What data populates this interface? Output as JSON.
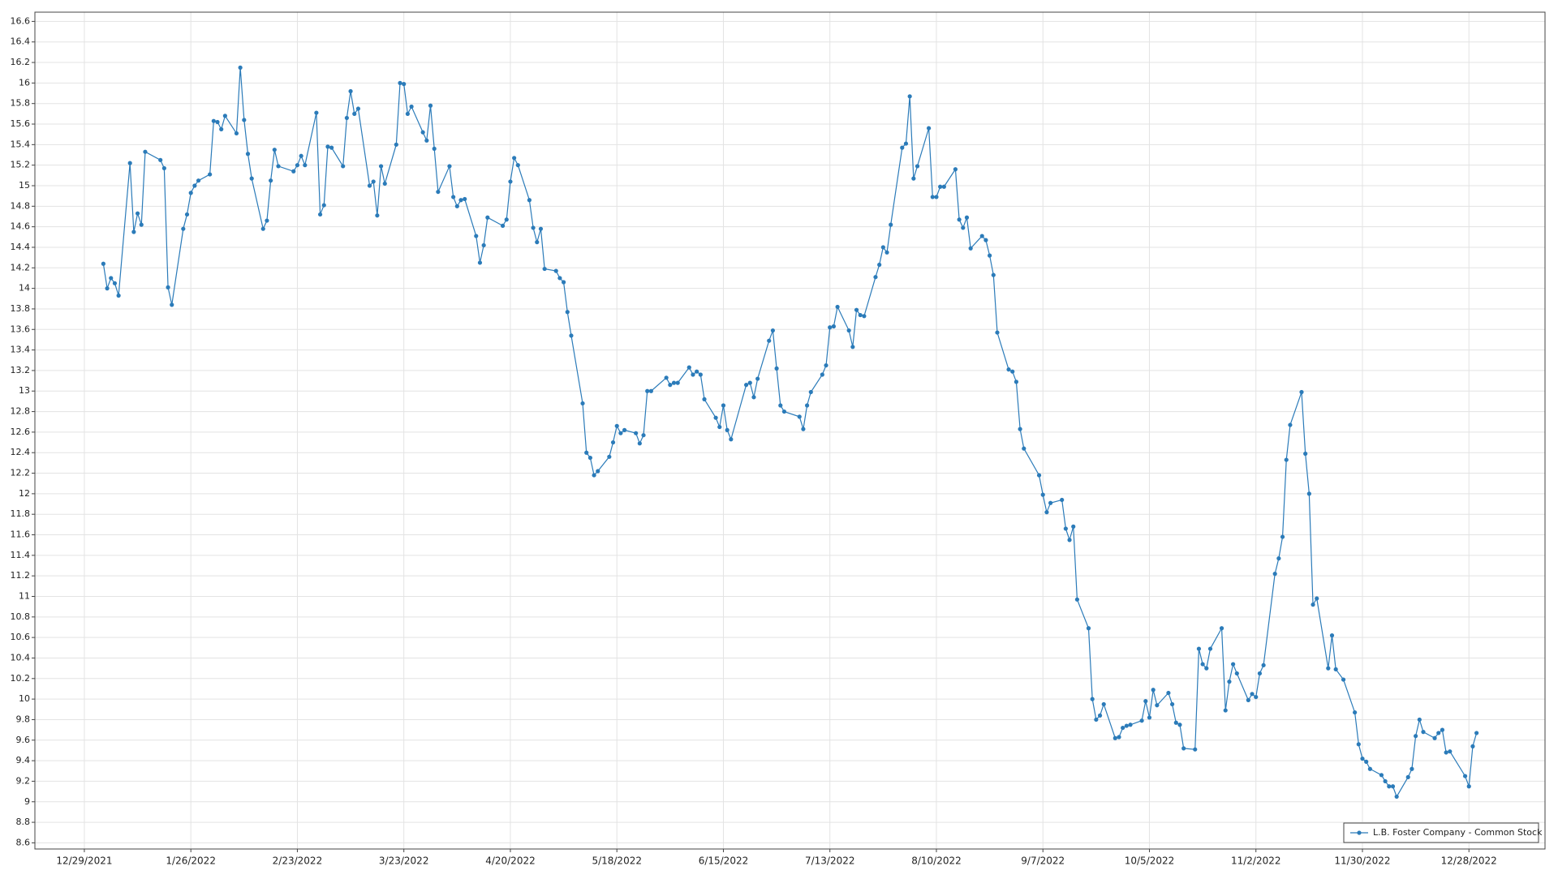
{
  "chart_data": {
    "type": "line",
    "x": [
      "1/3/2022",
      "1/4/2022",
      "1/5/2022",
      "1/6/2022",
      "1/7/2022",
      "1/10/2022",
      "1/11/2022",
      "1/12/2022",
      "1/13/2022",
      "1/14/2022",
      "1/18/2022",
      "1/19/2022",
      "1/20/2022",
      "1/21/2022",
      "1/24/2022",
      "1/25/2022",
      "1/26/2022",
      "1/27/2022",
      "1/28/2022",
      "1/31/2022",
      "2/1/2022",
      "2/2/2022",
      "2/3/2022",
      "2/4/2022",
      "2/7/2022",
      "2/8/2022",
      "2/9/2022",
      "2/10/2022",
      "2/11/2022",
      "2/14/2022",
      "2/15/2022",
      "2/16/2022",
      "2/17/2022",
      "2/18/2022",
      "2/22/2022",
      "2/23/2022",
      "2/24/2022",
      "2/25/2022",
      "2/28/2022",
      "3/1/2022",
      "3/2/2022",
      "3/3/2022",
      "3/4/2022",
      "3/7/2022",
      "3/8/2022",
      "3/9/2022",
      "3/10/2022",
      "3/11/2022",
      "3/14/2022",
      "3/15/2022",
      "3/16/2022",
      "3/17/2022",
      "3/18/2022",
      "3/21/2022",
      "3/22/2022",
      "3/23/2022",
      "3/24/2022",
      "3/25/2022",
      "3/28/2022",
      "3/29/2022",
      "3/30/2022",
      "3/31/2022",
      "4/1/2022",
      "4/4/2022",
      "4/5/2022",
      "4/6/2022",
      "4/7/2022",
      "4/8/2022",
      "4/11/2022",
      "4/12/2022",
      "4/13/2022",
      "4/14/2022",
      "4/18/2022",
      "4/19/2022",
      "4/20/2022",
      "4/21/2022",
      "4/22/2022",
      "4/25/2022",
      "4/26/2022",
      "4/27/2022",
      "4/28/2022",
      "4/29/2022",
      "5/2/2022",
      "5/3/2022",
      "5/4/2022",
      "5/5/2022",
      "5/6/2022",
      "5/9/2022",
      "5/10/2022",
      "5/11/2022",
      "5/12/2022",
      "5/13/2022",
      "5/16/2022",
      "5/17/2022",
      "5/18/2022",
      "5/19/2022",
      "5/20/2022",
      "5/23/2022",
      "5/24/2022",
      "5/25/2022",
      "5/26/2022",
      "5/27/2022",
      "5/31/2022",
      "6/1/2022",
      "6/2/2022",
      "6/3/2022",
      "6/6/2022",
      "6/7/2022",
      "6/8/2022",
      "6/9/2022",
      "6/10/2022",
      "6/13/2022",
      "6/14/2022",
      "6/15/2022",
      "6/16/2022",
      "6/17/2022",
      "6/21/2022",
      "6/22/2022",
      "6/23/2022",
      "6/24/2022",
      "6/27/2022",
      "6/28/2022",
      "6/29/2022",
      "6/30/2022",
      "7/1/2022",
      "7/5/2022",
      "7/6/2022",
      "7/7/2022",
      "7/8/2022",
      "7/11/2022",
      "7/12/2022",
      "7/13/2022",
      "7/14/2022",
      "7/15/2022",
      "7/18/2022",
      "7/19/2022",
      "7/20/2022",
      "7/21/2022",
      "7/22/2022",
      "7/25/2022",
      "7/26/2022",
      "7/27/2022",
      "7/28/2022",
      "7/29/2022",
      "8/1/2022",
      "8/2/2022",
      "8/3/2022",
      "8/4/2022",
      "8/5/2022",
      "8/8/2022",
      "8/9/2022",
      "8/10/2022",
      "8/11/2022",
      "8/12/2022",
      "8/15/2022",
      "8/16/2022",
      "8/17/2022",
      "8/18/2022",
      "8/19/2022",
      "8/22/2022",
      "8/23/2022",
      "8/24/2022",
      "8/25/2022",
      "8/26/2022",
      "8/29/2022",
      "8/30/2022",
      "8/31/2022",
      "9/1/2022",
      "9/2/2022",
      "9/6/2022",
      "9/7/2022",
      "9/8/2022",
      "9/9/2022",
      "9/12/2022",
      "9/13/2022",
      "9/14/2022",
      "9/15/2022",
      "9/16/2022",
      "9/19/2022",
      "9/20/2022",
      "9/21/2022",
      "9/22/2022",
      "9/23/2022",
      "9/26/2022",
      "9/27/2022",
      "9/28/2022",
      "9/29/2022",
      "9/30/2022",
      "10/3/2022",
      "10/4/2022",
      "10/5/2022",
      "10/6/2022",
      "10/7/2022",
      "10/10/2022",
      "10/11/2022",
      "10/12/2022",
      "10/13/2022",
      "10/14/2022",
      "10/17/2022",
      "10/18/2022",
      "10/19/2022",
      "10/20/2022",
      "10/21/2022",
      "10/24/2022",
      "10/25/2022",
      "10/26/2022",
      "10/27/2022",
      "10/28/2022",
      "10/31/2022",
      "11/1/2022",
      "11/2/2022",
      "11/3/2022",
      "11/4/2022",
      "11/7/2022",
      "11/8/2022",
      "11/9/2022",
      "11/10/2022",
      "11/11/2022",
      "11/14/2022",
      "11/15/2022",
      "11/16/2022",
      "11/17/2022",
      "11/18/2022",
      "11/21/2022",
      "11/22/2022",
      "11/23/2022",
      "11/25/2022",
      "11/28/2022",
      "11/29/2022",
      "11/30/2022",
      "12/1/2022",
      "12/2/2022",
      "12/5/2022",
      "12/6/2022",
      "12/7/2022",
      "12/8/2022",
      "12/9/2022",
      "12/12/2022",
      "12/13/2022",
      "12/14/2022",
      "12/15/2022",
      "12/16/2022",
      "12/19/2022",
      "12/20/2022",
      "12/21/2022",
      "12/22/2022",
      "12/23/2022",
      "12/27/2022",
      "12/28/2022",
      "12/29/2022",
      "12/30/2022"
    ],
    "series": [
      {
        "name": "L.B. Foster Company - Common Stock",
        "color": "#2b7bb9",
        "values": [
          14.24,
          14.0,
          14.1,
          14.05,
          13.93,
          15.22,
          14.55,
          14.73,
          14.62,
          15.33,
          15.25,
          15.17,
          14.01,
          13.84,
          14.58,
          14.72,
          14.93,
          15.0,
          15.05,
          15.11,
          15.63,
          15.62,
          15.55,
          15.68,
          15.51,
          16.15,
          15.64,
          15.31,
          15.07,
          14.58,
          14.66,
          15.05,
          15.35,
          15.19,
          15.14,
          15.2,
          15.29,
          15.2,
          15.71,
          14.72,
          14.81,
          15.38,
          15.37,
          15.19,
          15.66,
          15.92,
          15.7,
          15.75,
          15.0,
          15.04,
          14.71,
          15.19,
          15.02,
          15.4,
          16.0,
          15.99,
          15.7,
          15.77,
          15.52,
          15.44,
          15.78,
          15.36,
          14.94,
          15.19,
          14.89,
          14.8,
          14.86,
          14.87,
          14.51,
          14.25,
          14.42,
          14.69,
          14.61,
          14.67,
          15.04,
          15.27,
          15.2,
          14.86,
          14.59,
          14.45,
          14.58,
          14.19,
          14.17,
          14.1,
          14.06,
          13.77,
          13.54,
          12.88,
          12.4,
          12.35,
          12.18,
          12.22,
          12.36,
          12.5,
          12.66,
          12.59,
          12.62,
          12.59,
          12.49,
          12.57,
          13.0,
          13.0,
          13.13,
          13.06,
          13.08,
          13.08,
          13.23,
          13.16,
          13.19,
          13.16,
          12.92,
          12.74,
          12.65,
          12.86,
          12.62,
          12.53,
          13.06,
          13.08,
          12.94,
          13.12,
          13.49,
          13.59,
          13.22,
          12.86,
          12.8,
          12.75,
          12.63,
          12.86,
          12.99,
          13.16,
          13.25,
          13.62,
          13.63,
          13.82,
          13.59,
          13.43,
          13.79,
          13.74,
          13.73,
          14.11,
          14.23,
          14.4,
          14.35,
          14.62,
          15.37,
          15.41,
          15.87,
          15.07,
          15.19,
          15.56,
          14.89,
          14.89,
          14.99,
          14.99,
          15.16,
          14.67,
          14.59,
          14.69,
          14.39,
          14.51,
          14.47,
          14.32,
          14.13,
          13.57,
          13.21,
          13.19,
          13.09,
          12.63,
          12.44,
          12.18,
          11.99,
          11.82,
          11.91,
          11.94,
          11.66,
          11.55,
          11.68,
          10.97,
          10.69,
          10.0,
          9.8,
          9.84,
          9.95,
          9.62,
          9.63,
          9.72,
          9.74,
          9.75,
          9.79,
          9.98,
          9.82,
          10.09,
          9.94,
          10.06,
          9.95,
          9.77,
          9.75,
          9.52,
          9.51,
          10.49,
          10.34,
          10.3,
          10.49,
          10.69,
          9.89,
          10.17,
          10.34,
          10.25,
          9.99,
          10.05,
          10.02,
          10.25,
          10.33,
          11.22,
          11.37,
          11.58,
          12.33,
          12.67,
          12.99,
          12.39,
          12.0,
          10.92,
          10.98,
          10.3,
          10.62,
          10.29,
          10.19,
          9.87,
          9.56,
          9.42,
          9.39,
          9.32,
          9.26,
          9.2,
          9.15,
          9.15,
          9.05,
          9.24,
          9.32,
          9.64,
          9.8,
          9.68,
          9.62,
          9.67,
          9.7,
          9.48,
          9.49,
          9.25,
          9.15,
          9.54,
          9.67
        ]
      }
    ],
    "xlim": [
      "12/16/2021",
      "1/17/2023"
    ],
    "xticks": [
      "12/29/2021",
      "1/26/2022",
      "2/23/2022",
      "3/23/2022",
      "4/20/2022",
      "5/18/2022",
      "6/15/2022",
      "7/13/2022",
      "8/10/2022",
      "9/7/2022",
      "10/5/2022",
      "11/2/2022",
      "11/30/2022",
      "12/28/2022"
    ],
    "ylim": [
      8.54,
      16.69
    ],
    "yticks": [
      8.6,
      8.8,
      9,
      9.2,
      9.4,
      9.6,
      9.8,
      10,
      10.2,
      10.4,
      10.6,
      10.8,
      11,
      11.2,
      11.4,
      11.6,
      11.8,
      12,
      12.2,
      12.4,
      12.6,
      12.8,
      13,
      13.2,
      13.4,
      13.6,
      13.8,
      14,
      14.2,
      14.4,
      14.6,
      14.8,
      15,
      15.2,
      15.4,
      15.6,
      15.8,
      16,
      16.2,
      16.4,
      16.6
    ],
    "grid": true,
    "legend": "lower right"
  }
}
